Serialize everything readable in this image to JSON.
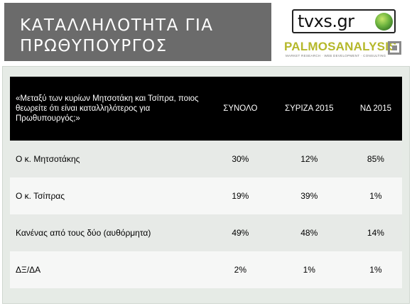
{
  "title": "ΚΑΤΑΛΛΗΛΟΤΗΤΑ ΓΙΑ ΠΡΩΘΥΠΟΥΡΓΟΣ",
  "logos": {
    "tvxs": "tvxs.gr",
    "palmos": "PALMOSANALYSIS",
    "palmos_tagline": "MARKET RESEARCH · WEB DEVELOPMENT · CONSULTING"
  },
  "table": {
    "question": "«Μεταξύ των κυρίων Μητσοτάκη και Τσίπρα, ποιος θεωρείτε ότι είναι καταλληλότερος για Πρωθυπουργός;»",
    "columns": [
      "ΣΥΝΟΛΟ",
      "ΣΥΡΙΖΑ 2015",
      "ΝΔ 2015"
    ],
    "rows": [
      {
        "label": "Ο κ. Μητσοτάκης",
        "values": [
          "30%",
          "12%",
          "85%"
        ]
      },
      {
        "label": "Ο κ. Τσίπρας",
        "values": [
          "19%",
          "39%",
          "1%"
        ]
      },
      {
        "label": "Κανένας από τους δύο (αυθόρμητα)",
        "values": [
          "49%",
          "48%",
          "14%"
        ]
      },
      {
        "label": "ΔΞ/ΔΑ",
        "values": [
          "2%",
          "1%",
          "1%"
        ]
      }
    ]
  }
}
